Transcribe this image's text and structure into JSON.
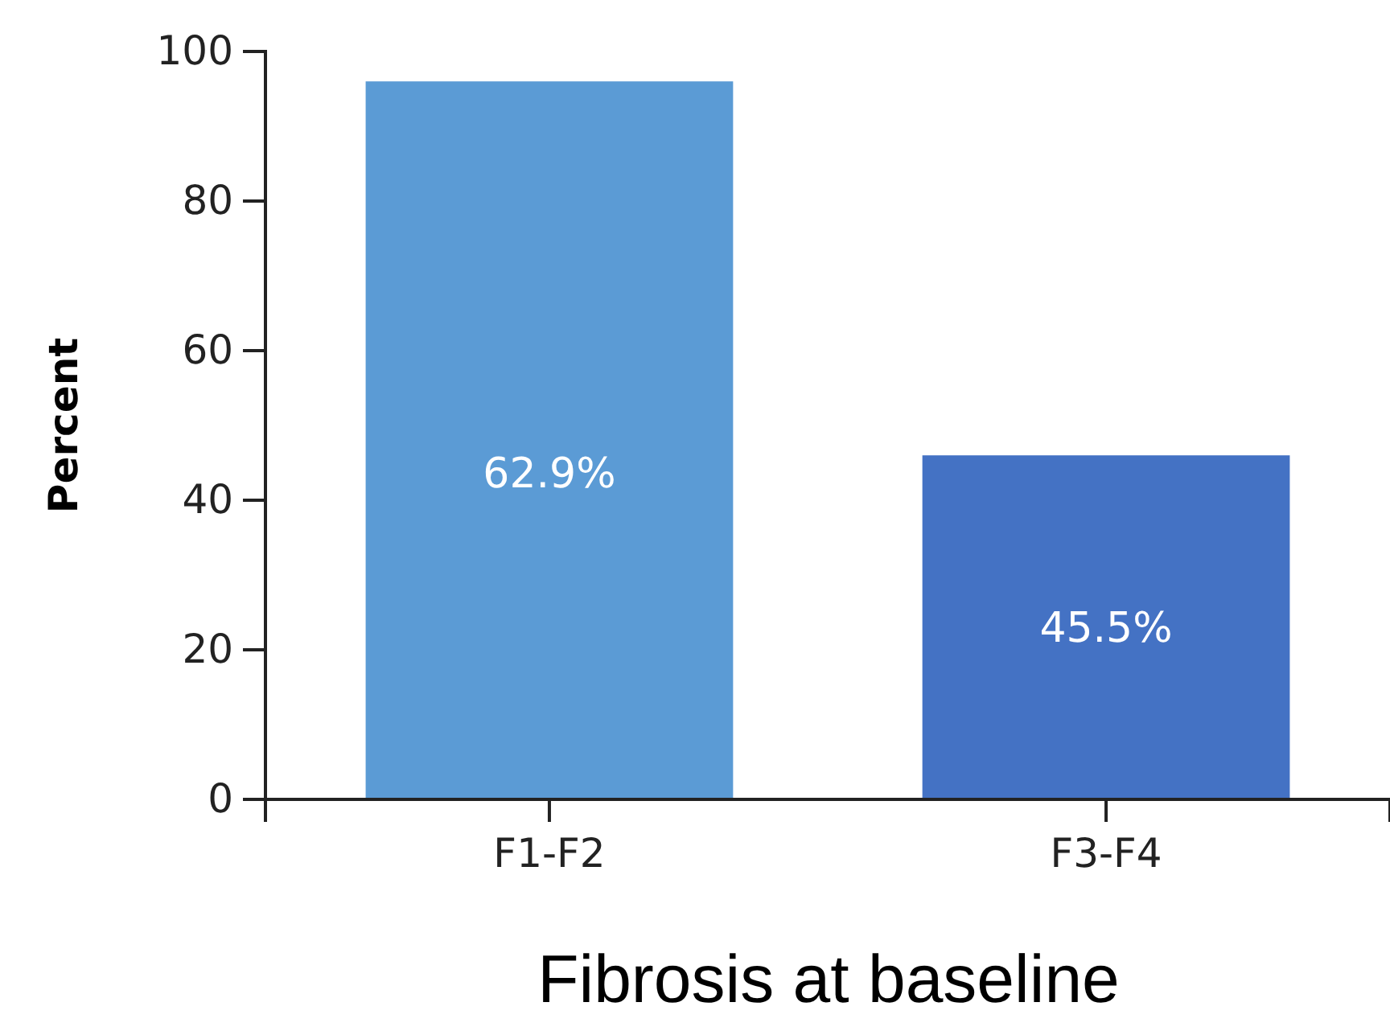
{
  "chart_data": {
    "type": "bar",
    "xlabel": "Fibrosis at baseline",
    "ylabel": "Percent",
    "categories": [
      "F1-F2",
      "F3-F4"
    ],
    "values": [
      96,
      46
    ],
    "colors": [
      "#5b9bd5",
      "#4472c4"
    ],
    "annotations": [
      "62.9%",
      "45.5%"
    ],
    "ylim": [
      0,
      100
    ],
    "yticks": [
      0,
      20,
      40,
      60,
      80,
      100
    ],
    "grid": false
  }
}
